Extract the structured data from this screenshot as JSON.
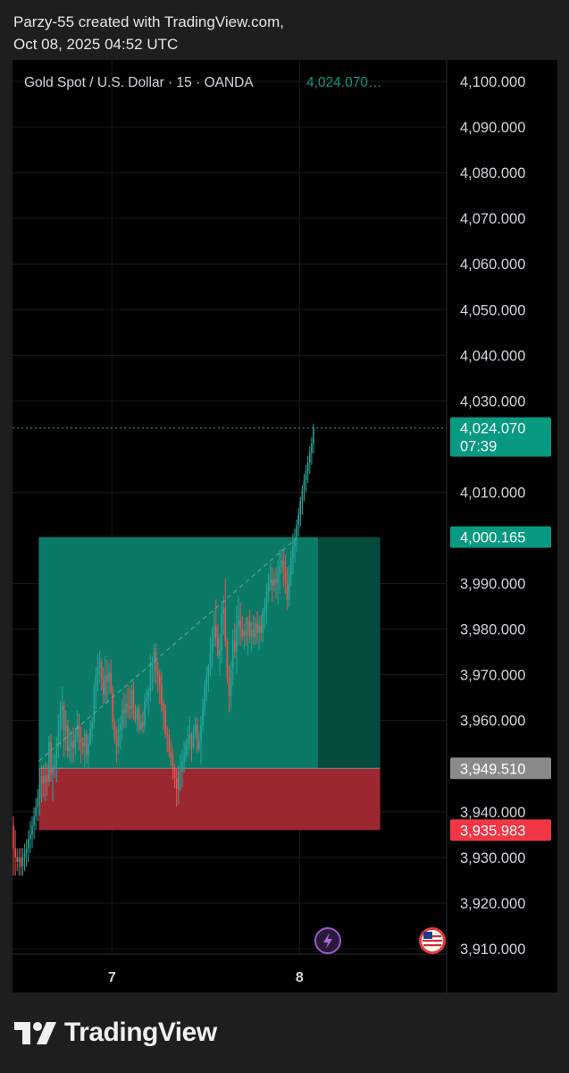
{
  "attribution": {
    "line1": "Parzy-55 created with TradingView.com,",
    "line2": "Oct 08, 2025 04:52 UTC"
  },
  "symbol_label": "Gold Spot / U.S. Dollar · 15 · OANDA",
  "symbol_price": "4,024.070…",
  "footer": {
    "brand": "TradingView",
    "logo_icon": "tradingview-logo-icon"
  },
  "icons": {
    "flash": "lightning-icon",
    "flag": "us-flag-icon"
  },
  "colors": {
    "up": "#26a69a",
    "down": "#ef5350",
    "profit_zone": "#0a7a66",
    "loss_zone": "#9b2830",
    "label_green": "#089981",
    "label_red": "#f23645",
    "label_gray": "#8a8a8a"
  },
  "chart_data": {
    "type": "candlestick",
    "title": "Gold Spot / U.S. Dollar · 15 · OANDA",
    "ylim": [
      3903,
      4105
    ],
    "yticks": [
      {
        "v": 4100,
        "label": "4,100.000"
      },
      {
        "v": 4090,
        "label": "4,090.000"
      },
      {
        "v": 4080,
        "label": "4,080.000"
      },
      {
        "v": 4070,
        "label": "4,070.000"
      },
      {
        "v": 4060,
        "label": "4,060.000"
      },
      {
        "v": 4050,
        "label": "4,050.000"
      },
      {
        "v": 4040,
        "label": "4,040.000"
      },
      {
        "v": 4030,
        "label": "4,030.000"
      },
      {
        "v": 4010,
        "label": "4,010.000"
      },
      {
        "v": 3990,
        "label": "3,990.000"
      },
      {
        "v": 3980,
        "label": "3,980.000"
      },
      {
        "v": 3970,
        "label": "3,970.000"
      },
      {
        "v": 3960,
        "label": "3,960.000"
      },
      {
        "v": 3940,
        "label": "3,940.000"
      },
      {
        "v": 3930,
        "label": "3,930.000"
      },
      {
        "v": 3920,
        "label": "3,920.000"
      },
      {
        "v": 3910,
        "label": "3,910.000"
      }
    ],
    "xticks": [
      {
        "label": "7",
        "bar": 53
      },
      {
        "label": "8",
        "bar": 153
      }
    ],
    "current_price": {
      "value": 4024.07,
      "label": "4,024.070",
      "countdown": "07:39"
    },
    "position": {
      "start_bar": 14,
      "end_bar": 196,
      "fill_bar": 163,
      "entry": {
        "value": 3949.51,
        "label": "3,949.510"
      },
      "take_profit": {
        "value": 4000.165,
        "label": "4,000.165"
      },
      "stop_loss": {
        "value": 3935.983,
        "label": "3,935.983"
      }
    },
    "ohlc": [
      [
        3937.0,
        3939.0,
        3926.0,
        3932.0
      ],
      [
        3932.0,
        3936.0,
        3926.0,
        3930.0
      ],
      [
        3930.0,
        3932.0,
        3927.0,
        3929.0
      ],
      [
        3929.0,
        3932.0,
        3926.0,
        3930.0
      ],
      [
        3930.0,
        3932.0,
        3926.0,
        3928.0
      ],
      [
        3928.0,
        3932.0,
        3926.0,
        3930.0
      ],
      [
        3930.0,
        3933.0,
        3927.0,
        3931.0
      ],
      [
        3931.0,
        3934.0,
        3928.0,
        3932.0
      ],
      [
        3932.0,
        3936.0,
        3929.0,
        3934.0
      ],
      [
        3934.0,
        3938.0,
        3931.0,
        3935.0
      ],
      [
        3935.0,
        3939.0,
        3932.0,
        3937.0
      ],
      [
        3937.0,
        3941.0,
        3934.0,
        3939.0
      ],
      [
        3939.0,
        3943.0,
        3936.0,
        3941.0
      ],
      [
        3941.0,
        3945.0,
        3938.0,
        3943.0
      ],
      [
        3943.0,
        3949.4,
        3939.2,
        3946.0
      ],
      [
        3946.0,
        3950.1,
        3942.0,
        3947.8
      ],
      [
        3947.8,
        3950.3,
        3943.2,
        3946.3
      ],
      [
        3946.3,
        3950.9,
        3942.3,
        3948.0
      ],
      [
        3948.0,
        3950.6,
        3943.5,
        3946.6
      ],
      [
        3946.6,
        3956.6,
        3945.6,
        3955.3
      ],
      [
        3955.3,
        3957.0,
        3946.6,
        3948.1
      ],
      [
        3948.1,
        3952.8,
        3942.3,
        3949.4
      ],
      [
        3949.4,
        3952.5,
        3947.4,
        3950.2
      ],
      [
        3950.2,
        3956.3,
        3946.4,
        3955.1
      ],
      [
        3955.1,
        3961.4,
        3951.8,
        3957.7
      ],
      [
        3957.7,
        3964.2,
        3954.1,
        3962.1
      ],
      [
        3962.1,
        3967.4,
        3958.1,
        3963.3
      ],
      [
        3963.3,
        3964.2,
        3952.1,
        3957.8
      ],
      [
        3957.8,
        3962.3,
        3953.3,
        3959.0
      ],
      [
        3959.0,
        3960.2,
        3951.9,
        3953.2
      ],
      [
        3953.2,
        3958.2,
        3951.0,
        3954.3
      ],
      [
        3954.3,
        3957.7,
        3950.5,
        3955.5
      ],
      [
        3955.5,
        3958.5,
        3950.7,
        3954.0
      ],
      [
        3954.0,
        3958.4,
        3952.4,
        3956.8
      ],
      [
        3956.8,
        3962.1,
        3955.2,
        3958.9
      ],
      [
        3958.9,
        3961.5,
        3953.4,
        3956.1
      ],
      [
        3956.1,
        3958.8,
        3950.6,
        3955.1
      ],
      [
        3955.1,
        3956.4,
        3952.5,
        3954.3
      ],
      [
        3954.3,
        3958.1,
        3949.6,
        3956.9
      ],
      [
        3956.9,
        3958.0,
        3950.6,
        3952.3
      ],
      [
        3952.3,
        3957.2,
        3949.6,
        3954.9
      ],
      [
        3954.9,
        3960.1,
        3954.5,
        3958.2
      ],
      [
        3958.2,
        3960.9,
        3955.7,
        3959.7
      ],
      [
        3959.7,
        3968.1,
        3958.3,
        3967.4
      ],
      [
        3967.4,
        3971.8,
        3962.5,
        3970.0
      ],
      [
        3970.0,
        3974.6,
        3966.4,
        3971.5
      ],
      [
        3971.5,
        3975.2,
        3968.1,
        3972.6
      ],
      [
        3972.6,
        3973.7,
        3966.6,
        3969.1
      ],
      [
        3969.1,
        3971.6,
        3963.6,
        3965.7
      ],
      [
        3965.7,
        3974.2,
        3963.8,
        3969.8
      ],
      [
        3969.8,
        3973.3,
        3964.2,
        3968.4
      ],
      [
        3968.4,
        3972.5,
        3965.8,
        3970.5
      ],
      [
        3970.5,
        3973.4,
        3965.8,
        3966.4
      ],
      [
        3966.4,
        3967.8,
        3958.0,
        3959.5
      ],
      [
        3959.5,
        3960.3,
        3955.0,
        3955.7
      ],
      [
        3955.7,
        3958.6,
        3950.8,
        3954.4
      ],
      [
        3954.4,
        3960.6,
        3952.8,
        3957.9
      ],
      [
        3957.9,
        3961.0,
        3953.7,
        3959.2
      ],
      [
        3959.2,
        3964.7,
        3955.7,
        3962.3
      ],
      [
        3962.3,
        3966.2,
        3958.3,
        3961.7
      ],
      [
        3961.7,
        3965.7,
        3958.4,
        3963.7
      ],
      [
        3963.7,
        3967.9,
        3960.6,
        3963.2
      ],
      [
        3963.2,
        3967.1,
        3960.2,
        3962.5
      ],
      [
        3962.5,
        3967.8,
        3960.6,
        3966.5
      ],
      [
        3966.5,
        3968.5,
        3960.0,
        3961.5
      ],
      [
        3961.5,
        3963.6,
        3959.4,
        3960.1
      ],
      [
        3960.1,
        3963.2,
        3957.6,
        3962.6
      ],
      [
        3962.6,
        3963.7,
        3957.1,
        3958.1
      ],
      [
        3958.1,
        3961.3,
        3957.6,
        3959.5
      ],
      [
        3959.5,
        3962.0,
        3957.2,
        3958.8
      ],
      [
        3958.8,
        3966.0,
        3957.5,
        3964.2
      ],
      [
        3964.2,
        3966.8,
        3962.8,
        3965.0
      ],
      [
        3965.0,
        3967.3,
        3961.0,
        3966.4
      ],
      [
        3966.4,
        3974.5,
        3964.1,
        3971.1
      ],
      [
        3971.1,
        3974.0,
        3966.5,
        3972.4
      ],
      [
        3972.4,
        3976.9,
        3968.4,
        3975.1
      ],
      [
        3975.1,
        3976.9,
        3968.0,
        3970.8
      ],
      [
        3970.8,
        3973.0,
        3966.1,
        3970.0
      ],
      [
        3970.0,
        3971.2,
        3963.5,
        3967.8
      ],
      [
        3967.8,
        3970.6,
        3961.9,
        3963.7
      ],
      [
        3963.7,
        3964.6,
        3957.9,
        3962.1
      ],
      [
        3962.1,
        3963.5,
        3956.1,
        3957.1
      ],
      [
        3957.1,
        3958.8,
        3953.0,
        3956.8
      ],
      [
        3956.8,
        3958.3,
        3952.0,
        3953.3
      ],
      [
        3953.3,
        3955.6,
        3950.0,
        3951.8
      ],
      [
        3951.8,
        3954.0,
        3947.1,
        3949.6
      ],
      [
        3949.6,
        3950.6,
        3945.1,
        3947.4
      ],
      [
        3947.4,
        3949.4,
        3941.1,
        3945.0
      ],
      [
        3945.0,
        3950.2,
        3941.5,
        3948.7
      ],
      [
        3948.7,
        3952.7,
        3944.5,
        3949.0
      ],
      [
        3949.0,
        3953.6,
        3945.3,
        3950.9
      ],
      [
        3950.9,
        3955.4,
        3948.5,
        3952.4
      ],
      [
        3952.4,
        3956.0,
        3951.0,
        3954.7
      ],
      [
        3954.7,
        3958.8,
        3952.1,
        3955.7
      ],
      [
        3955.7,
        3960.9,
        3953.4,
        3956.8
      ],
      [
        3956.8,
        3957.4,
        3950.9,
        3954.2
      ],
      [
        3954.2,
        3959.1,
        3953.5,
        3957.5
      ],
      [
        3957.5,
        3960.9,
        3956.0,
        3959.1
      ],
      [
        3959.1,
        3960.5,
        3952.9,
        3953.7
      ],
      [
        3953.7,
        3957.5,
        3953.2,
        3955.5
      ],
      [
        3955.5,
        3961.0,
        3950.4,
        3958.8
      ],
      [
        3958.8,
        3964.6,
        3957.5,
        3962.5
      ],
      [
        3962.5,
        3968.8,
        3961.1,
        3967.5
      ],
      [
        3967.5,
        3971.7,
        3964.3,
        3969.5
      ],
      [
        3969.5,
        3972.4,
        3966.2,
        3971.9
      ],
      [
        3971.9,
        3978.3,
        3969.7,
        3974.5
      ],
      [
        3974.5,
        3980.5,
        3971.3,
        3978.2
      ],
      [
        3978.2,
        3984.0,
        3976.2,
        3980.7
      ],
      [
        3980.7,
        3986.5,
        3976.2,
        3978.2
      ],
      [
        3978.2,
        3981.2,
        3973.5,
        3974.2
      ],
      [
        3974.2,
        3978.9,
        3969.8,
        3975.4
      ],
      [
        3975.4,
        3985.6,
        3972.5,
        3983.5
      ],
      [
        3983.5,
        3987.4,
        3978.7,
        3984.5
      ],
      [
        3984.5,
        3991.0,
        3976.1,
        3977.4
      ],
      [
        3977.4,
        3978.1,
        3968.1,
        3969.4
      ],
      [
        3969.4,
        3972.1,
        3961.8,
        3965.3
      ],
      [
        3965.3,
        3973.1,
        3962.8,
        3971.2
      ],
      [
        3971.2,
        3979.9,
        3967.7,
        3977.5
      ],
      [
        3977.5,
        3981.3,
        3973.6,
        3975.1
      ],
      [
        3975.1,
        3985.1,
        3970.2,
        3980.5
      ],
      [
        3980.5,
        3987.4,
        3976.5,
        3982.0
      ],
      [
        3982.0,
        3985.8,
        3976.4,
        3980.0
      ],
      [
        3980.0,
        3982.8,
        3977.5,
        3978.4
      ],
      [
        3978.4,
        3981.2,
        3975.6,
        3979.5
      ],
      [
        3979.5,
        3982.6,
        3976.4,
        3978.8
      ],
      [
        3978.8,
        3982.8,
        3974.3,
        3981.8
      ],
      [
        3981.8,
        3984.3,
        3977.0,
        3978.4
      ],
      [
        3978.4,
        3981.6,
        3975.1,
        3980.0
      ],
      [
        3980.0,
        3983.1,
        3976.5,
        3978.4
      ],
      [
        3978.4,
        3982.6,
        3976.6,
        3981.2
      ],
      [
        3981.2,
        3983.9,
        3976.9,
        3979.3
      ],
      [
        3979.3,
        3982.8,
        3975.3,
        3980.9
      ],
      [
        3980.9,
        3983.1,
        3977.3,
        3979.2
      ],
      [
        3979.2,
        3984.7,
        3977.1,
        3983.9
      ],
      [
        3983.9,
        3987.0,
        3980.1,
        3984.8
      ],
      [
        3984.8,
        3990.1,
        3981.0,
        3988.2
      ],
      [
        3988.2,
        3992.2,
        3985.9,
        3990.0
      ],
      [
        3990.0,
        3994.2,
        3988.5,
        3990.8
      ],
      [
        3990.8,
        3993.5,
        3985.9,
        3989.4
      ],
      [
        3989.4,
        3992.6,
        3988.3,
        3990.9
      ],
      [
        3990.9,
        3993.6,
        3986.7,
        3990.0
      ],
      [
        3990.0,
        3995.2,
        3985.4,
        3992.3
      ],
      [
        3992.3,
        3997.4,
        3987.8,
        3993.8
      ],
      [
        3993.8,
        3997.4,
        3992.2,
        3995.1
      ],
      [
        3995.1,
        3997.4,
        3989.2,
        3992.8
      ],
      [
        3992.8,
        3996.2,
        3987.7,
        3990.2
      ],
      [
        3990.2,
        3993.6,
        3984.2,
        3986.5
      ],
      [
        3986.5,
        3994.0,
        3984.8,
        3991.8
      ],
      [
        3991.8,
        3997.2,
        3989.5,
        3995.5
      ],
      [
        3995.5,
        4001.0,
        3992.0,
        3998.0
      ],
      [
        3998.0,
        4002.0,
        3994.5,
        3999.6
      ],
      [
        3999.6,
        4004.0,
        3997.0,
        4002.8
      ],
      [
        4002.8,
        4006.5,
        4000.4,
        4005.2
      ],
      [
        4005.2,
        4009.0,
        4002.5,
        4008.0
      ],
      [
        4008.0,
        4011.5,
        4005.0,
        4010.4
      ],
      [
        4010.4,
        4014.0,
        4008.0,
        4012.6
      ],
      [
        4012.6,
        4016.0,
        4010.0,
        4014.6
      ],
      [
        4014.6,
        4018.0,
        4012.0,
        4016.4
      ],
      [
        4016.4,
        4020.0,
        4014.0,
        4018.6
      ],
      [
        4018.6,
        4022.0,
        4016.0,
        4020.6
      ],
      [
        4020.6,
        4025.0,
        4018.5,
        4024.07
      ]
    ]
  }
}
